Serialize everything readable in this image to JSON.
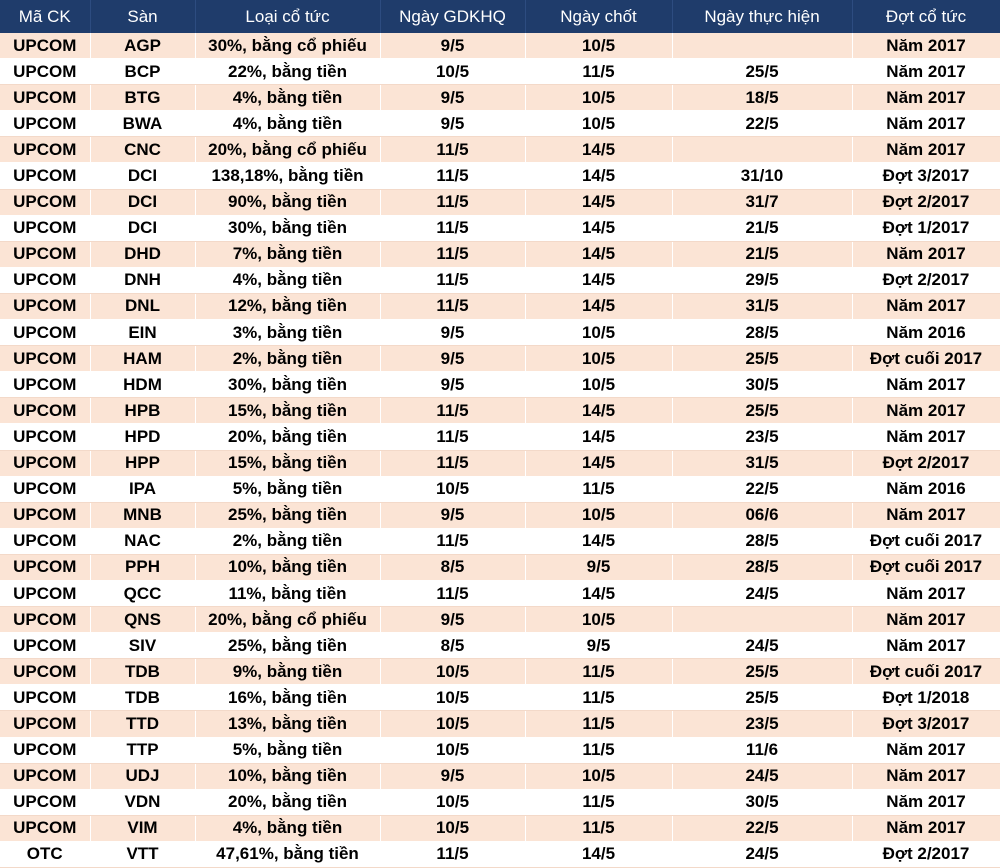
{
  "headers": [
    "Mã CK",
    "Sàn",
    "Loại cổ tức",
    "Ngày GDKHQ",
    "Ngày chốt",
    "Ngày thực hiện",
    "Đợt cổ tức"
  ],
  "colors": {
    "header_bg": "#1f3c6b",
    "stripe": "#fbe4d5"
  },
  "rows": [
    [
      "UPCOM",
      "AGP",
      "30%, bằng cổ phiếu",
      "9/5",
      "10/5",
      "",
      "Năm 2017"
    ],
    [
      "UPCOM",
      "BCP",
      "22%, bằng tiền",
      "10/5",
      "11/5",
      "25/5",
      "Năm 2017"
    ],
    [
      "UPCOM",
      "BTG",
      "4%, bằng tiền",
      "9/5",
      "10/5",
      "18/5",
      "Năm 2017"
    ],
    [
      "UPCOM",
      "BWA",
      "4%, bằng tiền",
      "9/5",
      "10/5",
      "22/5",
      "Năm 2017"
    ],
    [
      "UPCOM",
      "CNC",
      "20%, bằng cổ phiếu",
      "11/5",
      "14/5",
      "",
      "Năm 2017"
    ],
    [
      "UPCOM",
      "DCI",
      "138,18%, bằng tiền",
      "11/5",
      "14/5",
      "31/10",
      "Đợt 3/2017"
    ],
    [
      "UPCOM",
      "DCI",
      "90%, bằng tiền",
      "11/5",
      "14/5",
      "31/7",
      "Đợt 2/2017"
    ],
    [
      "UPCOM",
      "DCI",
      "30%, bằng tiền",
      "11/5",
      "14/5",
      "21/5",
      "Đợt 1/2017"
    ],
    [
      "UPCOM",
      "DHD",
      "7%, bằng tiền",
      "11/5",
      "14/5",
      "21/5",
      "Năm 2017"
    ],
    [
      "UPCOM",
      "DNH",
      "4%, bằng tiền",
      "11/5",
      "14/5",
      "29/5",
      "Đợt 2/2017"
    ],
    [
      "UPCOM",
      "DNL",
      "12%, bằng tiền",
      "11/5",
      "14/5",
      "31/5",
      "Năm 2017"
    ],
    [
      "UPCOM",
      "EIN",
      "3%, bằng tiền",
      "9/5",
      "10/5",
      "28/5",
      "Năm 2016"
    ],
    [
      "UPCOM",
      "HAM",
      "2%, bằng tiền",
      "9/5",
      "10/5",
      "25/5",
      "Đợt cuối 2017"
    ],
    [
      "UPCOM",
      "HDM",
      "30%, bằng tiền",
      "9/5",
      "10/5",
      "30/5",
      "Năm 2017"
    ],
    [
      "UPCOM",
      "HPB",
      "15%, bằng tiền",
      "11/5",
      "14/5",
      "25/5",
      "Năm 2017"
    ],
    [
      "UPCOM",
      "HPD",
      "20%, bằng tiền",
      "11/5",
      "14/5",
      "23/5",
      "Năm 2017"
    ],
    [
      "UPCOM",
      "HPP",
      "15%, bằng tiền",
      "11/5",
      "14/5",
      "31/5",
      "Đợt 2/2017"
    ],
    [
      "UPCOM",
      "IPA",
      "5%, bằng tiền",
      "10/5",
      "11/5",
      "22/5",
      "Năm 2016"
    ],
    [
      "UPCOM",
      "MNB",
      "25%, bằng tiền",
      "9/5",
      "10/5",
      "06/6",
      "Năm 2017"
    ],
    [
      "UPCOM",
      "NAC",
      "2%, bằng tiền",
      "11/5",
      "14/5",
      "28/5",
      "Đợt cuối 2017"
    ],
    [
      "UPCOM",
      "PPH",
      "10%, bằng tiền",
      "8/5",
      "9/5",
      "28/5",
      "Đợt cuối 2017"
    ],
    [
      "UPCOM",
      "QCC",
      "11%, bằng tiền",
      "11/5",
      "14/5",
      "24/5",
      "Năm 2017"
    ],
    [
      "UPCOM",
      "QNS",
      "20%, bằng cổ phiếu",
      "9/5",
      "10/5",
      "",
      "Năm 2017"
    ],
    [
      "UPCOM",
      "SIV",
      "25%, bằng tiền",
      "8/5",
      "9/5",
      "24/5",
      "Năm 2017"
    ],
    [
      "UPCOM",
      "TDB",
      "9%, bằng tiền",
      "10/5",
      "11/5",
      "25/5",
      "Đợt cuối 2017"
    ],
    [
      "UPCOM",
      "TDB",
      "16%, bằng tiền",
      "10/5",
      "11/5",
      "25/5",
      "Đợt 1/2018"
    ],
    [
      "UPCOM",
      "TTD",
      "13%, bằng tiền",
      "10/5",
      "11/5",
      "23/5",
      "Đợt 3/2017"
    ],
    [
      "UPCOM",
      "TTP",
      "5%, bằng tiền",
      "10/5",
      "11/5",
      "11/6",
      "Năm 2017"
    ],
    [
      "UPCOM",
      "UDJ",
      "10%, bằng tiền",
      "9/5",
      "10/5",
      "24/5",
      "Năm 2017"
    ],
    [
      "UPCOM",
      "VDN",
      "20%, bằng tiền",
      "10/5",
      "11/5",
      "30/5",
      "Năm 2017"
    ],
    [
      "UPCOM",
      "VIM",
      "4%, bằng tiền",
      "10/5",
      "11/5",
      "22/5",
      "Năm 2017"
    ],
    [
      "OTC",
      "VTT",
      "47,61%, bằng tiền",
      "11/5",
      "14/5",
      "24/5",
      "Đợt 2/2017"
    ]
  ]
}
